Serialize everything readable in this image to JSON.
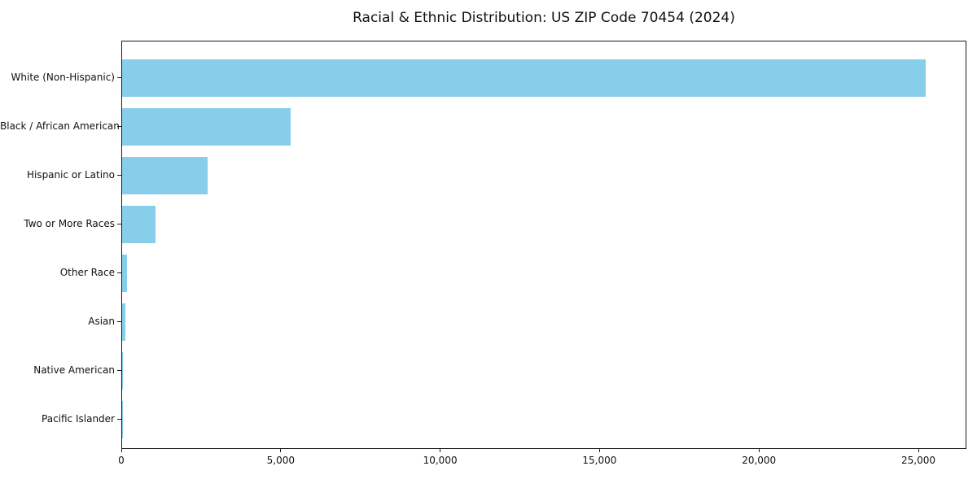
{
  "chart_data": {
    "type": "bar",
    "orientation": "horizontal",
    "title": "Racial & Ethnic Distribution: US ZIP Code 70454 (2024)",
    "categories": [
      "White (Non-Hispanic)",
      "Black / African American",
      "Hispanic or Latino",
      "Two or More Races",
      "Other Race",
      "Asian",
      "Native American",
      "Pacific Islander"
    ],
    "values": [
      25200,
      5290,
      2680,
      1050,
      150,
      110,
      20,
      10
    ],
    "xlabel": "",
    "ylabel": "",
    "xlim": [
      0,
      26500
    ],
    "xticks": [
      {
        "value": 0,
        "label": "0"
      },
      {
        "value": 5000,
        "label": "5,000"
      },
      {
        "value": 10000,
        "label": "10,000"
      },
      {
        "value": 15000,
        "label": "15,000"
      },
      {
        "value": 20000,
        "label": "20,000"
      },
      {
        "value": 25000,
        "label": "25,000"
      }
    ],
    "bar_color": "#87CEEB",
    "axis_color": "#1a1a1a",
    "grid": false,
    "legend": "none"
  }
}
